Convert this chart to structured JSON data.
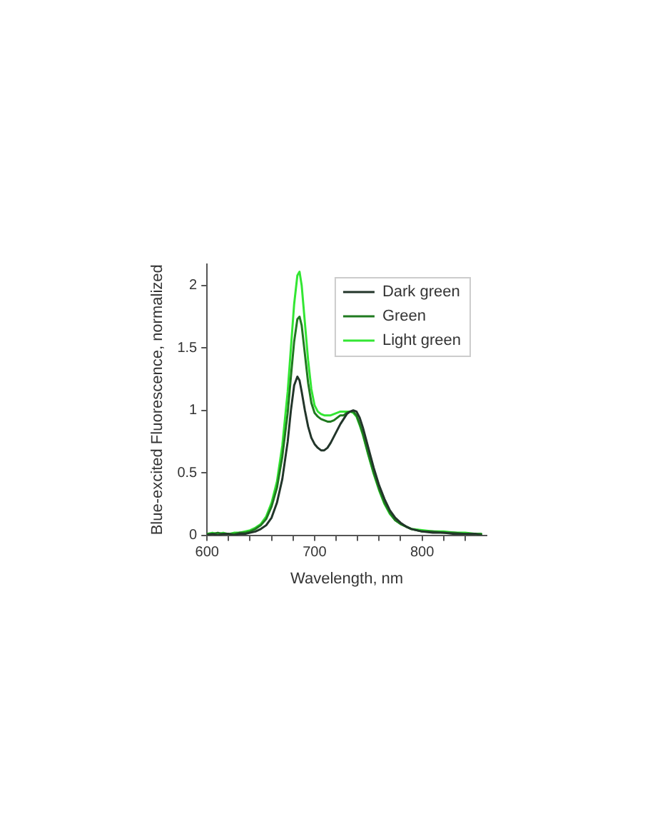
{
  "chart_data": {
    "type": "line",
    "xlabel": "Wavelength, nm",
    "ylabel": "Blue-excited Fluorescence, normalized",
    "x": [
      600,
      605,
      610,
      615,
      620,
      625,
      630,
      635,
      640,
      645,
      650,
      655,
      660,
      665,
      670,
      675,
      678,
      681,
      684,
      686,
      688,
      691,
      694,
      697,
      700,
      703,
      706,
      709,
      712,
      715,
      718,
      721,
      724,
      727,
      730,
      733,
      736,
      739,
      742,
      745,
      750,
      755,
      760,
      765,
      770,
      775,
      780,
      785,
      790,
      800,
      810,
      820,
      830,
      840,
      850,
      855
    ],
    "series": [
      {
        "name": "Dark green",
        "color": "#22352a",
        "values": [
          0.0,
          0.01,
          0.0,
          0.01,
          0.01,
          0.0,
          0.01,
          0.01,
          0.02,
          0.03,
          0.05,
          0.08,
          0.14,
          0.26,
          0.45,
          0.75,
          1.0,
          1.2,
          1.27,
          1.24,
          1.15,
          1.0,
          0.87,
          0.78,
          0.73,
          0.7,
          0.68,
          0.68,
          0.7,
          0.74,
          0.79,
          0.84,
          0.89,
          0.93,
          0.97,
          0.99,
          1.0,
          0.99,
          0.94,
          0.86,
          0.7,
          0.54,
          0.4,
          0.29,
          0.2,
          0.14,
          0.1,
          0.07,
          0.05,
          0.03,
          0.02,
          0.02,
          0.01,
          0.01,
          0.01,
          0.0
        ]
      },
      {
        "name": "Green",
        "color": "#1f7a1f",
        "values": [
          0.01,
          0.01,
          0.02,
          0.01,
          0.01,
          0.01,
          0.02,
          0.02,
          0.03,
          0.05,
          0.08,
          0.13,
          0.23,
          0.38,
          0.63,
          0.98,
          1.27,
          1.55,
          1.73,
          1.75,
          1.68,
          1.45,
          1.22,
          1.06,
          0.98,
          0.95,
          0.93,
          0.92,
          0.91,
          0.91,
          0.92,
          0.94,
          0.96,
          0.96,
          0.98,
          0.99,
          0.99,
          0.96,
          0.89,
          0.81,
          0.65,
          0.5,
          0.37,
          0.26,
          0.18,
          0.12,
          0.09,
          0.07,
          0.05,
          0.03,
          0.03,
          0.02,
          0.02,
          0.01,
          0.01,
          0.01
        ]
      },
      {
        "name": "Light green",
        "color": "#33e633",
        "values": [
          0.01,
          0.02,
          0.01,
          0.02,
          0.01,
          0.02,
          0.02,
          0.03,
          0.04,
          0.06,
          0.09,
          0.15,
          0.26,
          0.43,
          0.72,
          1.15,
          1.5,
          1.85,
          2.08,
          2.11,
          2.0,
          1.7,
          1.4,
          1.17,
          1.04,
          0.99,
          0.97,
          0.96,
          0.96,
          0.96,
          0.97,
          0.98,
          0.99,
          0.99,
          0.99,
          0.99,
          0.98,
          0.95,
          0.88,
          0.8,
          0.64,
          0.49,
          0.36,
          0.25,
          0.17,
          0.12,
          0.09,
          0.07,
          0.05,
          0.04,
          0.03,
          0.03,
          0.02,
          0.02,
          0.01,
          0.01
        ]
      }
    ],
    "xlim": [
      600,
      860
    ],
    "xticks": [
      600,
      {
        "value": 620,
        "label": null
      },
      {
        "value": 640,
        "label": null
      },
      {
        "value": 660,
        "label": null
      },
      {
        "value": 680,
        "label": null
      },
      700,
      {
        "value": 720,
        "label": null
      },
      {
        "value": 740,
        "label": null
      },
      {
        "value": 760,
        "label": null
      },
      {
        "value": 780,
        "label": null
      },
      800,
      {
        "value": 820,
        "label": null
      },
      {
        "value": 840,
        "label": null
      }
    ],
    "ylim": [
      0,
      2.17
    ],
    "yticks": [
      0,
      0.5,
      1,
      1.5,
      2
    ],
    "grid": false,
    "legend": "top right",
    "marker": "none",
    "line_style": "solid"
  }
}
